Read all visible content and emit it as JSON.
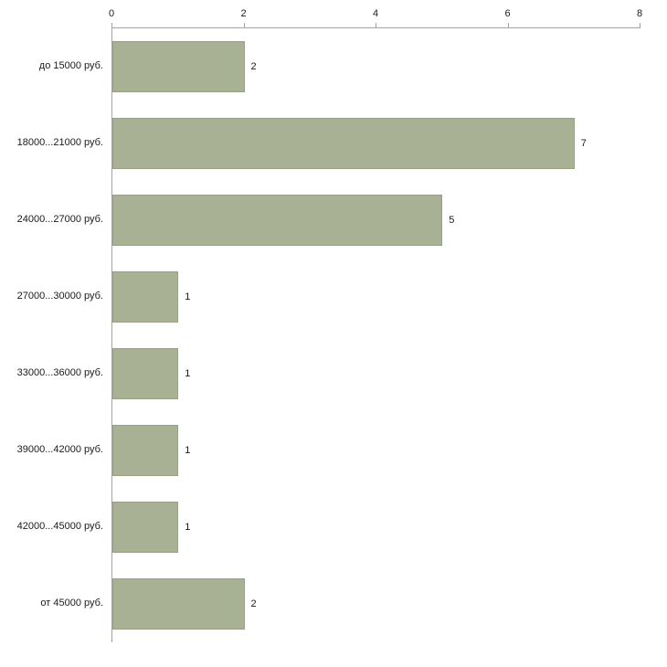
{
  "chart_data": {
    "type": "bar",
    "orientation": "horizontal",
    "title": "",
    "xlabel": "",
    "ylabel": "",
    "categories": [
      "до 15000 руб.",
      "18000...21000 руб.",
      "24000...27000 руб.",
      "27000...30000 руб.",
      "33000...36000 руб.",
      "39000...42000 руб.",
      "42000...45000 руб.",
      "от 45000 руб."
    ],
    "values": [
      2,
      7,
      5,
      1,
      1,
      1,
      1,
      2
    ],
    "value_labels": [
      "2",
      "7",
      "5",
      "1",
      "1",
      "1",
      "1",
      "2"
    ],
    "xlim": [
      0,
      8
    ],
    "xticks": [
      "0",
      "2",
      "4",
      "6",
      "8"
    ],
    "grid": false,
    "legend": false,
    "axis_position": "top-left",
    "colors": {
      "bar_fill": "#a9b194",
      "bar_border": "#98a181",
      "axis_line": "#a3a3a3",
      "text": "#1a1a1a",
      "background": "#ffffff"
    }
  }
}
